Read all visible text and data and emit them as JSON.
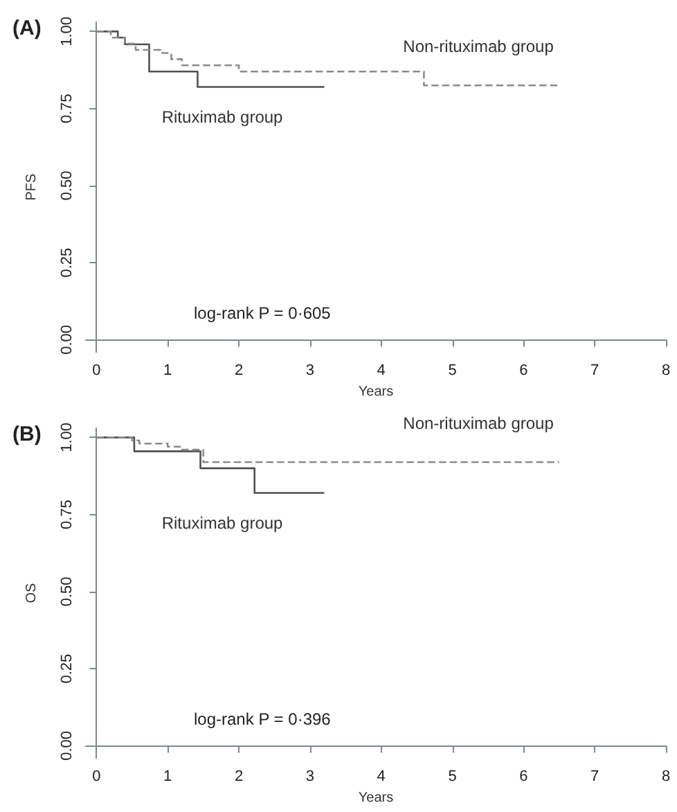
{
  "chart_data": [
    {
      "type": "step",
      "title": "(A)",
      "xlabel": "Years",
      "ylabel": "PFS",
      "series": [
        {
          "name": "Rituximab group",
          "color": "#505050",
          "line_style": "solid",
          "x": [
            0,
            0.3,
            0.4,
            0.74,
            1.42,
            3.2
          ],
          "values": [
            1.0,
            0.98,
            0.958,
            0.87,
            0.82,
            0.82
          ]
        },
        {
          "name": "Non-rituximab group",
          "color": "#8a8a8a",
          "line_style": "dashed",
          "x": [
            0,
            0.2,
            0.4,
            0.55,
            0.9,
            1.05,
            1.2,
            2.0,
            4.6,
            6.5
          ],
          "values": [
            1.0,
            0.98,
            0.96,
            0.94,
            0.93,
            0.91,
            0.89,
            0.87,
            0.825,
            0.825
          ]
        }
      ],
      "xlim": [
        -0.15,
        8
      ],
      "xticks": [
        0,
        1,
        2,
        3,
        4,
        5,
        6,
        7,
        8
      ],
      "ylim": [
        -0.04,
        1.03
      ],
      "yticks": [
        {
          "value": 0,
          "label": "0.00"
        },
        {
          "value": 0.25,
          "label": "0.25"
        },
        {
          "value": 0.5,
          "label": "0.50"
        },
        {
          "value": 0.75,
          "label": "0.75"
        },
        {
          "value": 1,
          "label": "1.00"
        }
      ],
      "annotations": [
        "log-rank P = 0·605"
      ],
      "grid": false,
      "legend": false,
      "marker": "none"
    },
    {
      "type": "step",
      "title": "(B)",
      "xlabel": "Years",
      "ylabel": "OS",
      "series": [
        {
          "name": "Rituximab group",
          "color": "#505050",
          "line_style": "solid",
          "x": [
            0,
            0.53,
            1.46,
            2.22,
            3.2
          ],
          "values": [
            1.0,
            0.955,
            0.9,
            0.82,
            0.82
          ]
        },
        {
          "name": "Non-rituximab group",
          "color": "#8a8a8a",
          "line_style": "dashed",
          "x": [
            0,
            0.5,
            0.6,
            1.0,
            1.2,
            1.5,
            6.5
          ],
          "values": [
            1.0,
            0.99,
            0.98,
            0.97,
            0.96,
            0.92,
            0.92
          ]
        }
      ],
      "xlim": [
        -0.15,
        8
      ],
      "xticks": [
        0,
        1,
        2,
        3,
        4,
        5,
        6,
        7,
        8
      ],
      "ylim": [
        -0.04,
        1.03
      ],
      "yticks": [
        {
          "value": 0,
          "label": "0.00"
        },
        {
          "value": 0.25,
          "label": "0.25"
        },
        {
          "value": 0.5,
          "label": "0.50"
        },
        {
          "value": 0.75,
          "label": "0.75"
        },
        {
          "value": 1,
          "label": "1.00"
        }
      ],
      "annotations": [
        "log-rank P = 0·396"
      ],
      "grid": false,
      "legend": false,
      "marker": "none"
    }
  ]
}
